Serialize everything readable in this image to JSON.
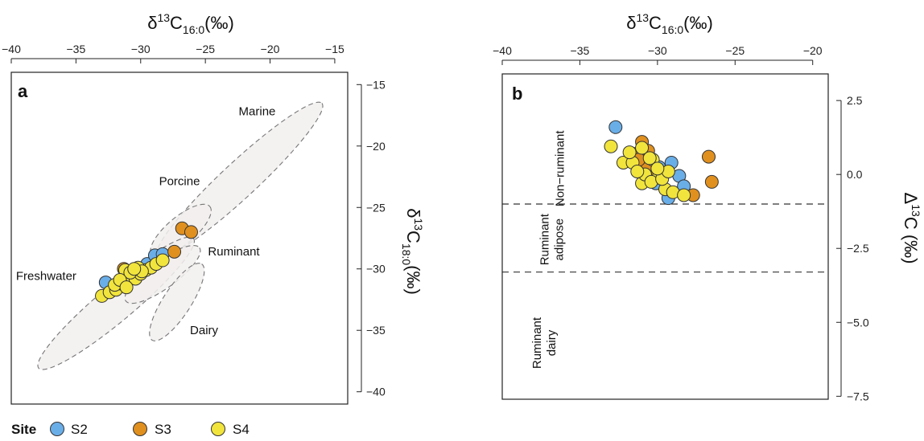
{
  "colors": {
    "S2": "#6aaee8",
    "S3": "#e0901e",
    "S4": "#f1e43c",
    "ellipse_fill": "#f2efef",
    "ellipse_stroke": "#777777"
  },
  "legend": {
    "title": "Site",
    "items": [
      "S2",
      "S3",
      "S4"
    ]
  },
  "chart_data": [
    {
      "type": "scatter",
      "panel_label": "a",
      "x_title_main": "δ",
      "x_title_sup": "13",
      "x_title_elem": "C",
      "x_title_sub": "16:0",
      "x_title_unit": "(‰)",
      "y_title_main": "δ",
      "y_title_sup": "13",
      "y_title_elem": "C",
      "y_title_sub": "18:0",
      "y_title_unit": "(‰)",
      "xlim": [
        -40,
        -14
      ],
      "ylim": [
        -41,
        -14
      ],
      "x_ticks": [
        -40,
        -35,
        -30,
        -25,
        -20,
        -15
      ],
      "y_ticks": [
        -15,
        -20,
        -25,
        -30,
        -35,
        -40
      ],
      "x_axis_position": "top",
      "y_axis_position": "right",
      "regions": [
        {
          "name": "Marine",
          "cx": -22.35,
          "cy": -22.75,
          "rx": 8.9,
          "ry": 1.4,
          "angle": 43,
          "label_x": -21,
          "label_y": -17.5
        },
        {
          "name": "Porcine",
          "cx": -26.9,
          "cy": -26.9,
          "rx": 3.0,
          "ry": 1.1,
          "angle": 40,
          "label_x": -27,
          "label_y": -23.2
        },
        {
          "name": "Freshwater",
          "cx": -31.9,
          "cy": -32.8,
          "rx": 8.0,
          "ry": 1.4,
          "angle": 40,
          "label_x": -37.3,
          "label_y": -30.9
        },
        {
          "name": "Ruminant",
          "cx": -28.3,
          "cy": -30.45,
          "rx": 3.6,
          "ry": 1.1,
          "angle": 36,
          "label_x": -22.8,
          "label_y": -28.9
        },
        {
          "name": "Dairy",
          "cx": -27.2,
          "cy": -32.7,
          "rx": 3.6,
          "ry": 1.1,
          "angle": 57,
          "label_x": -25.1,
          "label_y": -35.3
        }
      ],
      "series": [
        {
          "name": "S2",
          "points": [
            [
              -32.7,
              -31.1
            ],
            [
              -30.2,
              -30.1
            ],
            [
              -29.5,
              -29.6
            ],
            [
              -28.9,
              -28.9
            ],
            [
              -28.3,
              -28.8
            ],
            [
              -30.7,
              -30.5
            ],
            [
              -31.2,
              -31.0
            ]
          ]
        },
        {
          "name": "S3",
          "points": [
            [
              -26.8,
              -26.7
            ],
            [
              -26.1,
              -27.0
            ],
            [
              -27.4,
              -28.6
            ],
            [
              -31.3,
              -30.0
            ],
            [
              -30.5,
              -30.3
            ]
          ]
        },
        {
          "name": "S4",
          "points": [
            [
              -33.0,
              -32.2
            ],
            [
              -32.4,
              -31.9
            ],
            [
              -31.9,
              -31.7
            ],
            [
              -31.5,
              -31.2
            ],
            [
              -31.0,
              -30.9
            ],
            [
              -30.7,
              -30.6
            ],
            [
              -30.4,
              -30.8
            ],
            [
              -30.0,
              -30.4
            ],
            [
              -29.6,
              -30.1
            ],
            [
              -29.2,
              -29.9
            ],
            [
              -28.8,
              -29.6
            ],
            [
              -28.3,
              -29.3
            ],
            [
              -31.2,
              -30.1
            ],
            [
              -30.8,
              -30.3
            ],
            [
              -30.2,
              -29.9
            ],
            [
              -32.0,
              -31.3
            ],
            [
              -31.6,
              -30.9
            ],
            [
              -29.9,
              -30.2
            ],
            [
              -31.1,
              -31.5
            ],
            [
              -30.5,
              -30.0
            ]
          ]
        }
      ]
    },
    {
      "type": "scatter",
      "panel_label": "b",
      "x_title_main": "δ",
      "x_title_sup": "13",
      "x_title_elem": "C",
      "x_title_sub": "16:0",
      "x_title_unit": "(‰)",
      "y_title_main": "Δ",
      "y_title_sup": "13",
      "y_title_elem": "C",
      "y_title_unit": " (‰)",
      "xlim": [
        -40,
        -19
      ],
      "ylim": [
        -7.6,
        3.4
      ],
      "x_ticks": [
        -40,
        -35,
        -30,
        -25,
        -20
      ],
      "y_ticks": [
        2.5,
        0.0,
        -2.5,
        -5.0,
        -7.5
      ],
      "y_tick_labels": [
        "2.5",
        "0.0",
        "−2.5",
        "−5.0",
        "−7.5"
      ],
      "x_axis_position": "top",
      "y_axis_position": "right",
      "hlines": [
        -1.0,
        -3.3
      ],
      "region_labels": [
        {
          "lines": [
            "Non−ruminant"
          ],
          "x": -36.3,
          "y": 0.2
        },
        {
          "lines": [
            "Ruminant",
            "adipose"
          ],
          "x": -36.8,
          "y": -2.2
        },
        {
          "lines": [
            "Ruminant",
            "dairy"
          ],
          "x": -37.3,
          "y": -5.7
        }
      ],
      "series": [
        {
          "name": "S2",
          "points": [
            [
              -32.7,
              1.6
            ],
            [
              -29.1,
              0.4
            ],
            [
              -28.6,
              -0.05
            ],
            [
              -28.3,
              -0.4
            ],
            [
              -29.3,
              -0.8
            ],
            [
              -30.1,
              -0.3
            ],
            [
              -30.5,
              0.1
            ],
            [
              -29.9,
              0.25
            ]
          ]
        },
        {
          "name": "S3",
          "points": [
            [
              -26.7,
              0.6
            ],
            [
              -26.5,
              -0.25
            ],
            [
              -27.7,
              -0.7
            ],
            [
              -31.0,
              1.1
            ],
            [
              -31.6,
              0.7
            ],
            [
              -30.6,
              0.8
            ],
            [
              -30.7,
              0.3
            ],
            [
              -30.2,
              -0.1
            ],
            [
              -31.2,
              0.5
            ]
          ]
        },
        {
          "name": "S4",
          "points": [
            [
              -33.0,
              0.95
            ],
            [
              -32.2,
              0.4
            ],
            [
              -31.6,
              0.4
            ],
            [
              -31.0,
              -0.3
            ],
            [
              -30.8,
              0.0
            ],
            [
              -30.3,
              0.5
            ],
            [
              -29.9,
              -0.05
            ],
            [
              -29.5,
              -0.5
            ],
            [
              -29.0,
              -0.6
            ],
            [
              -28.3,
              -0.7
            ],
            [
              -31.3,
              0.1
            ],
            [
              -30.4,
              -0.25
            ],
            [
              -29.7,
              -0.15
            ],
            [
              -31.0,
              0.9
            ],
            [
              -30.5,
              0.55
            ],
            [
              -29.3,
              0.1
            ],
            [
              -31.8,
              0.75
            ],
            [
              -30.0,
              0.2
            ]
          ]
        }
      ]
    }
  ]
}
